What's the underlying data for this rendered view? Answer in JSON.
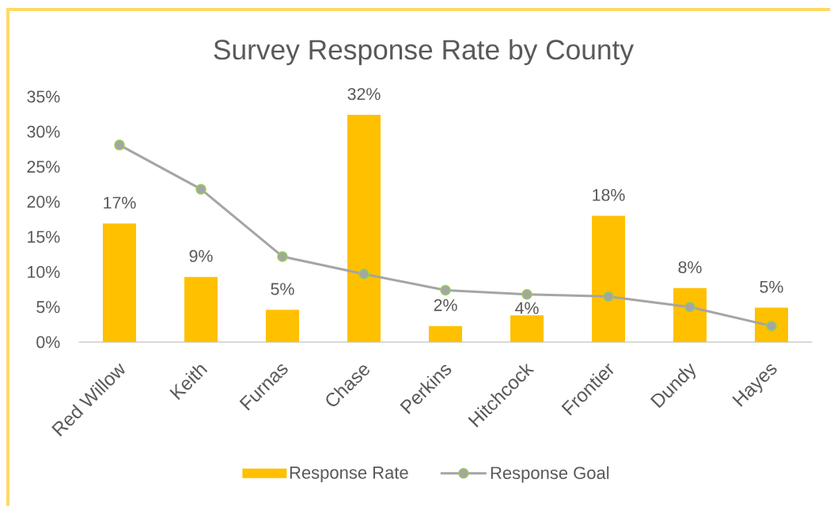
{
  "chart_data": {
    "type": "bar",
    "title": "Survey Response Rate by County",
    "categories": [
      "Red Willow",
      "Keith",
      "Furnas",
      "Chase",
      "Perkins",
      "Hitchcock",
      "Frontier",
      "Dundy",
      "Hayes"
    ],
    "series": [
      {
        "name": "Response Rate",
        "color": "#FFC000",
        "values": [
          16.9,
          9.3,
          4.6,
          32.4,
          2.3,
          3.8,
          18.0,
          7.7,
          4.9
        ],
        "value_labels": [
          "17%",
          "9%",
          "5%",
          "32%",
          "2%",
          "4%",
          "18%",
          "8%",
          "5%"
        ]
      },
      {
        "name": "Response Goal",
        "type": "line",
        "color": "#A5A5A5",
        "marker": "circle",
        "line_style": "solid",
        "values": [
          28.1,
          21.8,
          12.2,
          9.7,
          7.4,
          6.8,
          6.5,
          5.0,
          2.3
        ]
      }
    ],
    "ylim": [
      0,
      35
    ],
    "yticks": [
      {
        "value": 0,
        "label": "0%"
      },
      {
        "value": 5,
        "label": "5%"
      },
      {
        "value": 10,
        "label": "10%"
      },
      {
        "value": 15,
        "label": "15%"
      },
      {
        "value": 20,
        "label": "20%"
      },
      {
        "value": 25,
        "label": "25%"
      },
      {
        "value": 30,
        "label": "30%"
      },
      {
        "value": 35,
        "label": "35%"
      }
    ],
    "legend": "bottom"
  }
}
